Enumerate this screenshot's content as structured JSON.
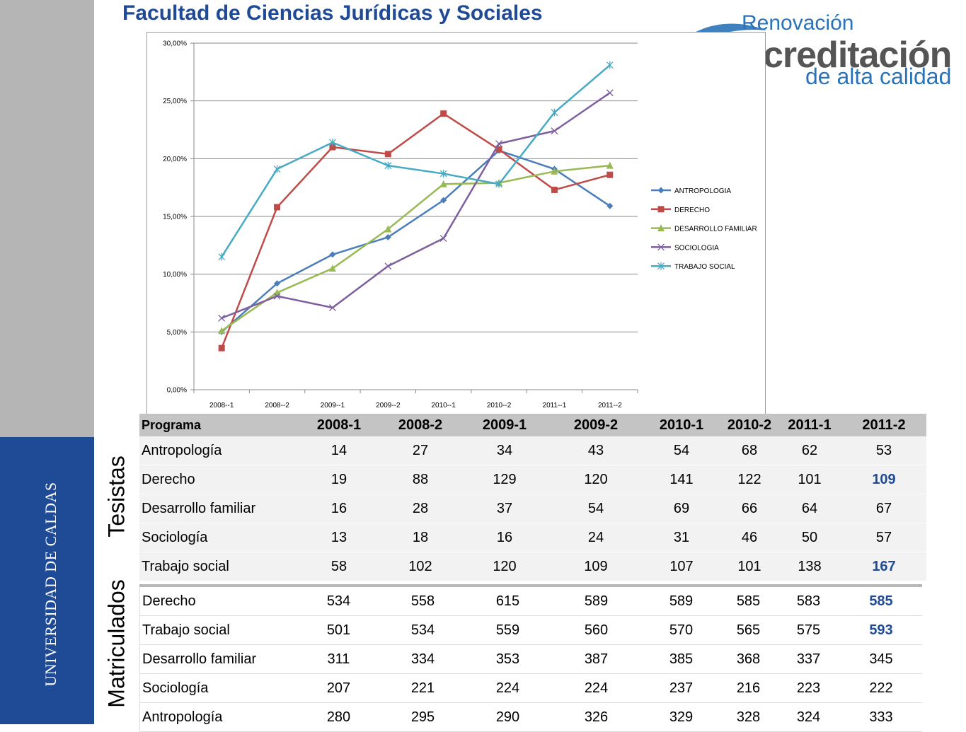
{
  "header": {
    "title": "Facultad de Ciencias Jurídicas y Sociales",
    "logo": {
      "top": "Renovación",
      "main": "creditación",
      "sub": "de alta calidad",
      "brand_color": "#2a73b8"
    }
  },
  "sidebar": {
    "institution": "UNIVERSIDAD DE CALDAS",
    "gray_color": "#b5b5b5",
    "blue_color": "#1f4a96"
  },
  "section_labels": {
    "tesistas": "Tesistas",
    "matriculados": "Matriculados"
  },
  "chart_data": {
    "type": "line",
    "categories": [
      "2008--1",
      "2008--2",
      "2009--1",
      "2009--2",
      "2010--1",
      "2010--2",
      "2011--1",
      "2011--2"
    ],
    "y_ticks": [
      "0,00%",
      "5,00%",
      "10,00%",
      "15,00%",
      "20,00%",
      "25,00%",
      "30,00%"
    ],
    "ylim": [
      0,
      30
    ],
    "grid": true,
    "legend_position": "right",
    "series": [
      {
        "name": "ANTROPOLOGIA",
        "color": "#4a7ebb",
        "marker": "diamond",
        "values": [
          5.0,
          9.2,
          11.7,
          13.2,
          16.4,
          20.7,
          19.1,
          15.9
        ]
      },
      {
        "name": "DERECHO",
        "color": "#be4b48",
        "marker": "square",
        "values": [
          3.6,
          15.8,
          21.0,
          20.4,
          23.9,
          20.8,
          17.3,
          18.6
        ]
      },
      {
        "name": "DESARROLLO FAMILIAR",
        "color": "#98b954",
        "marker": "triangle",
        "values": [
          5.1,
          8.4,
          10.5,
          13.9,
          17.8,
          17.9,
          18.9,
          19.4
        ]
      },
      {
        "name": "SOCIOLOGIA",
        "color": "#7d5fa0",
        "marker": "x",
        "values": [
          6.2,
          8.1,
          7.1,
          10.7,
          13.1,
          21.3,
          22.4,
          25.7
        ]
      },
      {
        "name": "TRABAJO SOCIAL",
        "color": "#46aac5",
        "marker": "star",
        "values": [
          11.5,
          19.1,
          21.4,
          19.4,
          18.7,
          17.8,
          24.0,
          28.1
        ]
      }
    ]
  },
  "tesistas_table": {
    "header_label": "Programa",
    "periods": [
      "2008-1",
      "2008-2",
      "2009-1",
      "2009-2",
      "2010-1",
      "2010-2",
      "2011-1",
      "2011-2"
    ],
    "rows": [
      {
        "program": "Antropología",
        "values": [
          "14",
          "27",
          "34",
          "43",
          "54",
          "68",
          "62",
          "53"
        ]
      },
      {
        "program": "Derecho",
        "values": [
          "19",
          "88",
          "129",
          "120",
          "141",
          "122",
          "101",
          "109"
        ]
      },
      {
        "program": "Desarrollo familiar",
        "values": [
          "16",
          "28",
          "37",
          "54",
          "69",
          "66",
          "64",
          "67"
        ]
      },
      {
        "program": "Sociología",
        "values": [
          "13",
          "18",
          "16",
          "24",
          "31",
          "46",
          "50",
          "57"
        ]
      },
      {
        "program": "Trabajo social",
        "values": [
          "58",
          "102",
          "120",
          "109",
          "107",
          "101",
          "138",
          "167"
        ]
      }
    ],
    "highlighted": [
      [
        "Derecho",
        "2011-2"
      ],
      [
        "Trabajo social",
        "2011-2"
      ]
    ],
    "highlight_color": "#1f4a96"
  },
  "matriculados_table": {
    "rows": [
      {
        "program": "Derecho",
        "values": [
          "534",
          "558",
          "615",
          "589",
          "589",
          "585",
          "583",
          "585"
        ]
      },
      {
        "program": "Trabajo social",
        "values": [
          "501",
          "534",
          "559",
          "560",
          "570",
          "565",
          "575",
          "593"
        ]
      },
      {
        "program": "Desarrollo familiar",
        "values": [
          "311",
          "334",
          "353",
          "387",
          "385",
          "368",
          "337",
          "345"
        ]
      },
      {
        "program": "Sociología",
        "values": [
          "207",
          "221",
          "224",
          "224",
          "237",
          "216",
          "223",
          "222"
        ]
      },
      {
        "program": "Antropología",
        "values": [
          "280",
          "295",
          "290",
          "326",
          "329",
          "328",
          "324",
          "333"
        ]
      }
    ],
    "highlighted": [
      [
        "Derecho",
        "2011-2"
      ],
      [
        "Trabajo social",
        "2011-2"
      ]
    ],
    "highlight_color": "#1f4a96"
  }
}
